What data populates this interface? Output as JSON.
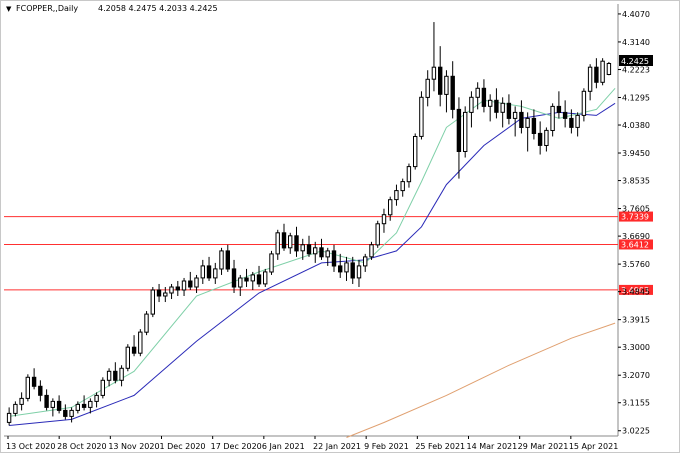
{
  "header": {
    "symbol": "FCOPPER,,Daily",
    "ohlc": "4.2058 4.2475 4.2033 4.2425"
  },
  "current_price_label": "4.2425",
  "colors": {
    "background": "#ffffff",
    "candle": "#000000",
    "ma_fast": "#7fd0a8",
    "ma_mid": "#2b2bb8",
    "ma_slow": "#e0a070",
    "level_line": "#ff3030",
    "level_label_bg": "#ff2a2a",
    "price_label_bg": "#000000"
  },
  "chart_data": {
    "type": "candlestick",
    "y_ticks": [
      "4.4070",
      "4.3140",
      "4.2223",
      "4.1295",
      "4.0380",
      "3.9450",
      "3.8535",
      "3.7605",
      "3.6690",
      "3.5760",
      "3.4845",
      "3.3915",
      "3.3000",
      "3.2070",
      "3.1155",
      "3.0225"
    ],
    "x_ticks": [
      "13 Oct 2020",
      "28 Oct 2020",
      "13 Nov 2020",
      "1 Dec 2020",
      "17 Dec 2020",
      "6 Jan 2021",
      "22 Jan 2021",
      "9 Feb 2021",
      "25 Feb 2021",
      "14 Mar 2021",
      "29 Mar 2021",
      "15 Apr 2021"
    ],
    "ylim": [
      3.005,
      4.44
    ],
    "levels": [
      {
        "value": 3.7339,
        "label": "3.7339"
      },
      {
        "value": 3.6412,
        "label": "3.6412"
      },
      {
        "value": 3.4903,
        "label": "3.4903"
      }
    ],
    "candles": [
      [
        3.05,
        3.1,
        3.04,
        3.08
      ],
      [
        3.08,
        3.12,
        3.07,
        3.11
      ],
      [
        3.11,
        3.15,
        3.09,
        3.13
      ],
      [
        3.13,
        3.21,
        3.12,
        3.2
      ],
      [
        3.2,
        3.23,
        3.16,
        3.17
      ],
      [
        3.17,
        3.19,
        3.12,
        3.14
      ],
      [
        3.14,
        3.16,
        3.09,
        3.1
      ],
      [
        3.1,
        3.13,
        3.07,
        3.12
      ],
      [
        3.12,
        3.14,
        3.08,
        3.09
      ],
      [
        3.09,
        3.11,
        3.06,
        3.07
      ],
      [
        3.07,
        3.1,
        3.05,
        3.09
      ],
      [
        3.09,
        3.12,
        3.08,
        3.11
      ],
      [
        3.11,
        3.14,
        3.09,
        3.1
      ],
      [
        3.1,
        3.13,
        3.08,
        3.12
      ],
      [
        3.12,
        3.15,
        3.1,
        3.14
      ],
      [
        3.14,
        3.2,
        3.13,
        3.19
      ],
      [
        3.19,
        3.23,
        3.17,
        3.22
      ],
      [
        3.22,
        3.25,
        3.18,
        3.19
      ],
      [
        3.19,
        3.24,
        3.17,
        3.23
      ],
      [
        3.23,
        3.31,
        3.22,
        3.3
      ],
      [
        3.3,
        3.34,
        3.27,
        3.28
      ],
      [
        3.28,
        3.36,
        3.27,
        3.35
      ],
      [
        3.35,
        3.42,
        3.34,
        3.41
      ],
      [
        3.41,
        3.5,
        3.4,
        3.49
      ],
      [
        3.49,
        3.51,
        3.45,
        3.47
      ],
      [
        3.47,
        3.5,
        3.45,
        3.48
      ],
      [
        3.48,
        3.51,
        3.46,
        3.5
      ],
      [
        3.5,
        3.52,
        3.47,
        3.49
      ],
      [
        3.49,
        3.53,
        3.47,
        3.52
      ],
      [
        3.52,
        3.55,
        3.49,
        3.5
      ],
      [
        3.5,
        3.54,
        3.48,
        3.53
      ],
      [
        3.53,
        3.59,
        3.51,
        3.57
      ],
      [
        3.57,
        3.6,
        3.52,
        3.53
      ],
      [
        3.53,
        3.58,
        3.51,
        3.56
      ],
      [
        3.56,
        3.63,
        3.54,
        3.62
      ],
      [
        3.62,
        3.64,
        3.55,
        3.56
      ],
      [
        3.56,
        3.59,
        3.48,
        3.5
      ],
      [
        3.5,
        3.54,
        3.47,
        3.53
      ],
      [
        3.53,
        3.56,
        3.5,
        3.52
      ],
      [
        3.52,
        3.55,
        3.49,
        3.54
      ],
      [
        3.54,
        3.57,
        3.5,
        3.51
      ],
      [
        3.51,
        3.56,
        3.5,
        3.55
      ],
      [
        3.55,
        3.62,
        3.54,
        3.61
      ],
      [
        3.61,
        3.69,
        3.59,
        3.68
      ],
      [
        3.68,
        3.71,
        3.62,
        3.63
      ],
      [
        3.63,
        3.68,
        3.61,
        3.67
      ],
      [
        3.67,
        3.7,
        3.6,
        3.62
      ],
      [
        3.62,
        3.66,
        3.59,
        3.64
      ],
      [
        3.64,
        3.67,
        3.6,
        3.61
      ],
      [
        3.61,
        3.65,
        3.58,
        3.63
      ],
      [
        3.63,
        3.66,
        3.59,
        3.6
      ],
      [
        3.6,
        3.63,
        3.57,
        3.62
      ],
      [
        3.62,
        3.64,
        3.55,
        3.57
      ],
      [
        3.57,
        3.61,
        3.53,
        3.55
      ],
      [
        3.55,
        3.6,
        3.52,
        3.58
      ],
      [
        3.58,
        3.6,
        3.51,
        3.53
      ],
      [
        3.53,
        3.59,
        3.5,
        3.57
      ],
      [
        3.57,
        3.61,
        3.55,
        3.6
      ],
      [
        3.6,
        3.65,
        3.59,
        3.64
      ],
      [
        3.64,
        3.72,
        3.63,
        3.71
      ],
      [
        3.71,
        3.76,
        3.68,
        3.74
      ],
      [
        3.74,
        3.8,
        3.72,
        3.79
      ],
      [
        3.79,
        3.84,
        3.77,
        3.82
      ],
      [
        3.82,
        3.86,
        3.8,
        3.85
      ],
      [
        3.85,
        3.91,
        3.83,
        3.9
      ],
      [
        3.9,
        4.01,
        3.89,
        4.0
      ],
      [
        4.0,
        4.15,
        3.99,
        4.13
      ],
      [
        4.13,
        4.22,
        4.1,
        4.19
      ],
      [
        4.19,
        4.38,
        4.15,
        4.23
      ],
      [
        4.23,
        4.3,
        4.1,
        4.14
      ],
      [
        4.14,
        4.22,
        4.08,
        4.2
      ],
      [
        4.2,
        4.25,
        4.06,
        4.09
      ],
      [
        4.09,
        4.13,
        3.86,
        3.95
      ],
      [
        3.95,
        4.1,
        3.93,
        4.08
      ],
      [
        4.08,
        4.15,
        4.03,
        4.13
      ],
      [
        4.13,
        4.18,
        4.09,
        4.16
      ],
      [
        4.16,
        4.19,
        4.08,
        4.1
      ],
      [
        4.1,
        4.14,
        4.05,
        4.12
      ],
      [
        4.12,
        4.16,
        4.06,
        4.08
      ],
      [
        4.08,
        4.13,
        4.03,
        4.11
      ],
      [
        4.11,
        4.14,
        4.04,
        4.06
      ],
      [
        4.06,
        4.1,
        4.0,
        4.08
      ],
      [
        4.08,
        4.12,
        4.01,
        4.03
      ],
      [
        4.03,
        4.08,
        3.95,
        4.06
      ],
      [
        4.06,
        4.09,
        3.99,
        4.01
      ],
      [
        4.01,
        4.05,
        3.94,
        3.97
      ],
      [
        3.97,
        4.03,
        3.95,
        4.02
      ],
      [
        4.02,
        4.11,
        4.0,
        4.1
      ],
      [
        4.1,
        4.15,
        4.06,
        4.08
      ],
      [
        4.08,
        4.12,
        4.03,
        4.06
      ],
      [
        4.06,
        4.09,
        4.01,
        4.03
      ],
      [
        4.03,
        4.08,
        4.0,
        4.07
      ],
      [
        4.07,
        4.16,
        4.05,
        4.15
      ],
      [
        4.15,
        4.24,
        4.12,
        4.23
      ],
      [
        4.23,
        4.26,
        4.16,
        4.18
      ],
      [
        4.18,
        4.26,
        4.17,
        4.25
      ],
      [
        4.2058,
        4.2475,
        4.2033,
        4.2425
      ]
    ],
    "ma_fast": [
      [
        0,
        3.07
      ],
      [
        10,
        3.1
      ],
      [
        20,
        3.22
      ],
      [
        30,
        3.47
      ],
      [
        40,
        3.55
      ],
      [
        50,
        3.62
      ],
      [
        57,
        3.58
      ],
      [
        62,
        3.68
      ],
      [
        66,
        3.85
      ],
      [
        70,
        4.03
      ],
      [
        76,
        4.12
      ],
      [
        82,
        4.1
      ],
      [
        88,
        4.06
      ],
      [
        94,
        4.09
      ],
      [
        97,
        4.16
      ]
    ],
    "ma_mid": [
      [
        0,
        3.04
      ],
      [
        10,
        3.06
      ],
      [
        20,
        3.14
      ],
      [
        30,
        3.32
      ],
      [
        40,
        3.48
      ],
      [
        50,
        3.58
      ],
      [
        57,
        3.59
      ],
      [
        62,
        3.62
      ],
      [
        66,
        3.7
      ],
      [
        70,
        3.84
      ],
      [
        76,
        3.97
      ],
      [
        82,
        4.06
      ],
      [
        88,
        4.08
      ],
      [
        94,
        4.07
      ],
      [
        97,
        4.11
      ]
    ],
    "ma_slow": [
      [
        54,
        3.0
      ],
      [
        60,
        3.05
      ],
      [
        70,
        3.14
      ],
      [
        80,
        3.24
      ],
      [
        90,
        3.33
      ],
      [
        97,
        3.38
      ]
    ]
  }
}
